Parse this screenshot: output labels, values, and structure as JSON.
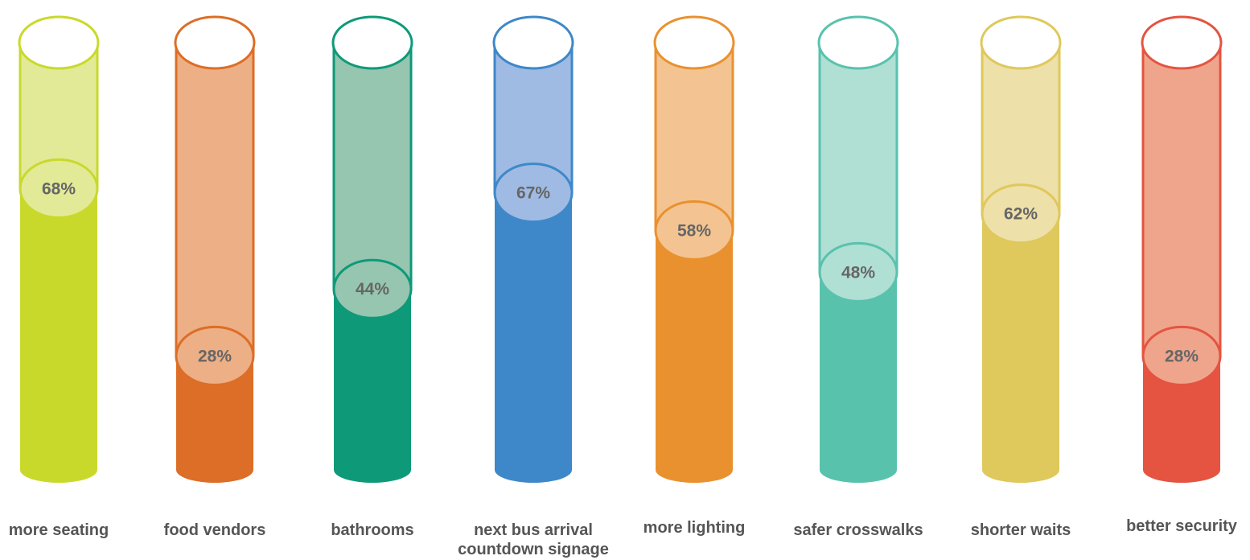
{
  "chart_data": {
    "type": "bar",
    "categories": [
      "more seating",
      "food vendors",
      "bathrooms",
      "next bus arrival countdown signage",
      "more lighting",
      "safer crosswalks",
      "shorter waits",
      "better security"
    ],
    "category_lines": [
      [
        "more seating"
      ],
      [
        "food vendors"
      ],
      [
        "bathrooms"
      ],
      [
        "next bus arrival",
        "countdown signage"
      ],
      [
        "more lighting"
      ],
      [
        "safer crosswalks"
      ],
      [
        "shorter waits"
      ],
      [
        "better security"
      ]
    ],
    "values": [
      68,
      28,
      44,
      67,
      58,
      48,
      62,
      28
    ],
    "value_labels": [
      "68%",
      "28%",
      "44%",
      "67%",
      "58%",
      "48%",
      "62%",
      "28%"
    ],
    "ylim": [
      0,
      100
    ],
    "colors": [
      "#c9d92b",
      "#dc6e27",
      "#0e9a78",
      "#3e88c9",
      "#e9912f",
      "#58c2ad",
      "#dfc85c",
      "#e45441"
    ],
    "light_colors": [
      "#e2ea98",
      "#edaf85",
      "#96c5b0",
      "#9fbbe3",
      "#f3c491",
      "#b0dfd4",
      "#ede0a9",
      "#efa58b"
    ]
  }
}
